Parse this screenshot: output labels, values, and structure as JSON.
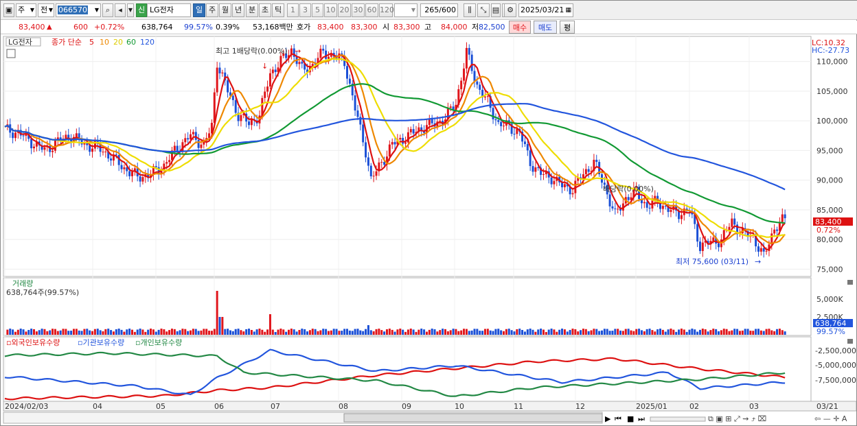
{
  "toolbar": {
    "period_selector": "주",
    "full_label": "전",
    "code_value": "066570",
    "credit_badge": "신",
    "stock_name": "LG전자",
    "period_tabs": [
      "일",
      "주",
      "월",
      "년",
      "분",
      "초",
      "틱"
    ],
    "active_period": "일",
    "interval_buttons": [
      "1",
      "3",
      "5",
      "10",
      "20",
      "30",
      "60",
      "120"
    ],
    "count_value": "265/600",
    "date_value": "2025/03/21"
  },
  "quote": {
    "price": "83,400",
    "arrow": "▲",
    "change": "600",
    "change_pct": "+0.72%",
    "volume": "638,764",
    "volume_ratio": "99.57%",
    "turnover_ratio": "0.39%",
    "trade_value": "53,168백만",
    "ask_label": "호가",
    "ask1": "83,400",
    "ask2": "83,300",
    "open_label": "시",
    "open": "83,300",
    "high_label": "고",
    "high": "84,000",
    "low_label": "저",
    "low": "82,500",
    "buy_button": "매수",
    "sell_button": "매도",
    "eval_button": "평"
  },
  "price_panel": {
    "legend_name": "LG전자",
    "legend_ma": "종가 단순",
    "ma_periods": [
      "5",
      "10",
      "20",
      "60",
      "120"
    ],
    "ma_colors": [
      "#dd1111",
      "#ee8800",
      "#eedd00",
      "#119933",
      "#2255dd"
    ],
    "lc_label": "LC:10.32",
    "hc_label": "HC:-27.73",
    "y_ticks": [
      "110,000",
      "105,000",
      "100,000",
      "95,000",
      "90,000",
      "85,000",
      "80,000",
      "75,000"
    ],
    "current_tag": "83,400",
    "current_pct": "0.72%",
    "annotation_high": "최고 1배당락(0.00%)",
    "annotation_low": "최저 75,600 (03/11)",
    "annotation_div": "배당락(0.00%)"
  },
  "volume_panel": {
    "title": "거래량",
    "value": "638,764주(99.57%)",
    "y_ticks": [
      "5,000K",
      "2,500K"
    ],
    "current_tag": "638,764",
    "current_pct": "99.57%"
  },
  "holdings_panel": {
    "legend": [
      "외국인보유수량",
      "기관보유수량",
      "개인보유수량"
    ],
    "colors": [
      "#dd1111",
      "#2255dd",
      "#228844"
    ],
    "y_ticks": [
      "-2,500,000",
      "-5,000,000",
      "-7,500,000"
    ]
  },
  "x_axis": {
    "labels": [
      "2024/02/03",
      "04",
      "05",
      "06",
      "07",
      "08",
      "09",
      "10",
      "11",
      "12",
      "2025/01",
      "02",
      "03",
      "03/21"
    ]
  },
  "chart_data": {
    "type": "candlestick",
    "title": "LG전자",
    "ylim": [
      74000,
      114000
    ],
    "price_path": [
      [
        0,
        98500
      ],
      [
        5,
        98000
      ],
      [
        10,
        96500
      ],
      [
        15,
        95000
      ],
      [
        20,
        96500
      ],
      [
        25,
        97500
      ],
      [
        30,
        96000
      ],
      [
        35,
        95500
      ],
      [
        40,
        94000
      ],
      [
        45,
        92000
      ],
      [
        50,
        90500
      ],
      [
        55,
        91000
      ],
      [
        60,
        92500
      ],
      [
        65,
        95500
      ],
      [
        70,
        97500
      ],
      [
        75,
        96000
      ],
      [
        78,
        99000
      ],
      [
        80,
        110000
      ],
      [
        84,
        105000
      ],
      [
        88,
        101000
      ],
      [
        92,
        99500
      ],
      [
        96,
        101000
      ],
      [
        100,
        108000
      ],
      [
        104,
        110000
      ],
      [
        108,
        112000
      ],
      [
        112,
        108500
      ],
      [
        116,
        109500
      ],
      [
        120,
        111500
      ],
      [
        124,
        111000
      ],
      [
        128,
        110000
      ],
      [
        132,
        102000
      ],
      [
        136,
        95000
      ],
      [
        138,
        90000
      ],
      [
        142,
        93000
      ],
      [
        146,
        96000
      ],
      [
        150,
        97000
      ],
      [
        154,
        98000
      ],
      [
        158,
        99000
      ],
      [
        162,
        99500
      ],
      [
        166,
        100500
      ],
      [
        170,
        103000
      ],
      [
        174,
        111500
      ],
      [
        178,
        106000
      ],
      [
        182,
        103000
      ],
      [
        186,
        99500
      ],
      [
        190,
        99000
      ],
      [
        194,
        98000
      ],
      [
        198,
        93000
      ],
      [
        202,
        91000
      ],
      [
        206,
        90500
      ],
      [
        210,
        89000
      ],
      [
        214,
        88500
      ],
      [
        218,
        91000
      ],
      [
        222,
        93000
      ],
      [
        226,
        89000
      ],
      [
        230,
        84000
      ],
      [
        234,
        87000
      ],
      [
        238,
        88000
      ],
      [
        242,
        85500
      ],
      [
        246,
        86500
      ],
      [
        250,
        85000
      ],
      [
        254,
        84500
      ],
      [
        258,
        85000
      ],
      [
        262,
        79000
      ],
      [
        266,
        79500
      ],
      [
        270,
        80000
      ],
      [
        274,
        83000
      ],
      [
        278,
        81000
      ],
      [
        282,
        80500
      ],
      [
        286,
        77000
      ],
      [
        290,
        82000
      ],
      [
        294,
        83400
      ]
    ]
  }
}
